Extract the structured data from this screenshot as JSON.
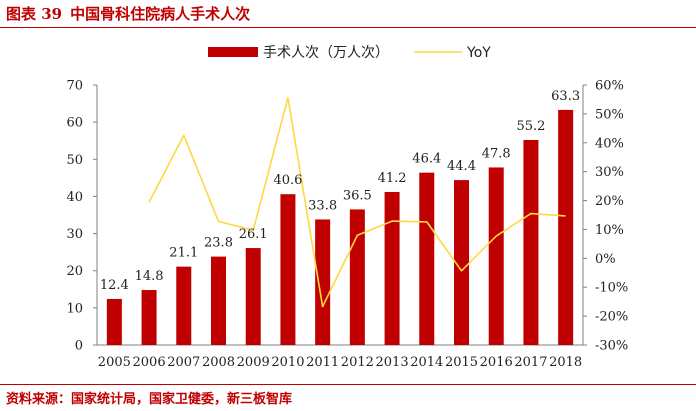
{
  "figure": {
    "label": "图表 39",
    "title": "中国骨科住院病人手术人次",
    "source": "资料来源：国家统计局，国家卫健委，新三板智库"
  },
  "colors": {
    "bar": "#c00000",
    "line": "#ffd740",
    "accent": "#c00000"
  },
  "chart_data": {
    "type": "bar",
    "categories": [
      "2005",
      "2006",
      "2007",
      "2008",
      "2009",
      "2010",
      "2011",
      "2012",
      "2013",
      "2014",
      "2015",
      "2016",
      "2017",
      "2018"
    ],
    "series": [
      {
        "name": "手术人次（万人次）",
        "type": "bar",
        "axis": "left",
        "values": [
          12.4,
          14.8,
          21.1,
          23.8,
          26.1,
          40.6,
          33.8,
          36.5,
          41.2,
          46.4,
          44.4,
          47.8,
          55.2,
          63.3
        ],
        "labels": [
          "12.4",
          "14.8",
          "21.1",
          "23.8",
          "26.1",
          "40.6",
          "33.8",
          "36.5",
          "41.2",
          "46.4",
          "44.4",
          "47.8",
          "55.2",
          "63.3"
        ]
      },
      {
        "name": "YoY",
        "type": "line",
        "axis": "right",
        "values": [
          null,
          19.4,
          42.6,
          12.8,
          9.7,
          55.6,
          -16.7,
          8.0,
          12.9,
          12.6,
          -4.3,
          7.7,
          15.5,
          14.7
        ]
      }
    ],
    "yleft": {
      "lim": [
        0,
        70
      ],
      "ticks": [
        0,
        10,
        20,
        30,
        40,
        50,
        60,
        70
      ],
      "tick_labels": [
        "0",
        "10",
        "20",
        "30",
        "40",
        "50",
        "60",
        "70"
      ]
    },
    "yright": {
      "lim": [
        -30,
        60
      ],
      "ticks": [
        -30,
        -20,
        -10,
        0,
        10,
        20,
        30,
        40,
        50,
        60
      ],
      "tick_labels": [
        "-30%",
        "-20%",
        "-10%",
        "0%",
        "10%",
        "20%",
        "30%",
        "40%",
        "50%",
        "60%"
      ]
    },
    "legend": {
      "position": "top",
      "entries": [
        "手术人次（万人次）",
        "YoY"
      ]
    },
    "grid": false
  }
}
